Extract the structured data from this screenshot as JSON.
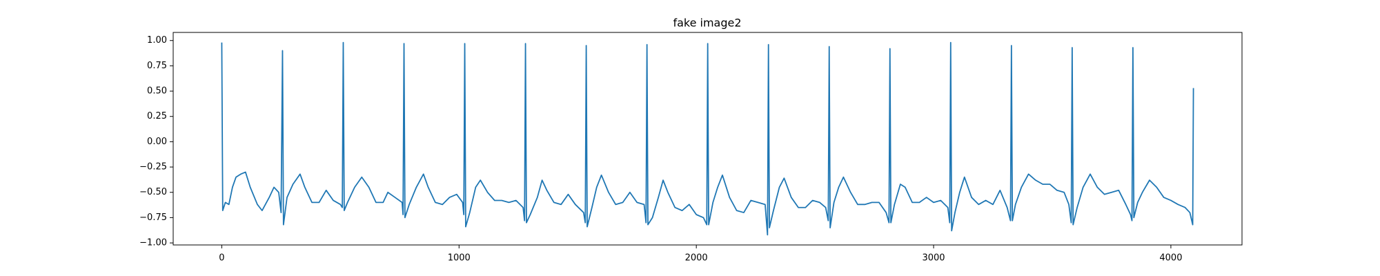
{
  "chart_data": {
    "type": "line",
    "title": "fake image2",
    "x": [
      0,
      4,
      15,
      30,
      45,
      60,
      80,
      100,
      120,
      150,
      170,
      200,
      220,
      240,
      250,
      256,
      260,
      275,
      300,
      330,
      350,
      380,
      410,
      440,
      470,
      500,
      508,
      512,
      516,
      530,
      560,
      590,
      620,
      650,
      680,
      700,
      730,
      760,
      764,
      768,
      772,
      790,
      820,
      850,
      870,
      900,
      930,
      960,
      990,
      1015,
      1020,
      1024,
      1028,
      1045,
      1070,
      1090,
      1120,
      1150,
      1180,
      1210,
      1240,
      1270,
      1276,
      1280,
      1284,
      1300,
      1330,
      1350,
      1370,
      1400,
      1430,
      1460,
      1490,
      1525,
      1532,
      1536,
      1540,
      1560,
      1580,
      1600,
      1630,
      1660,
      1690,
      1720,
      1750,
      1780,
      1788,
      1792,
      1796,
      1815,
      1840,
      1860,
      1880,
      1910,
      1940,
      1970,
      2000,
      2030,
      2044,
      2048,
      2052,
      2070,
      2090,
      2110,
      2140,
      2170,
      2200,
      2230,
      2260,
      2290,
      2300,
      2304,
      2308,
      2325,
      2350,
      2370,
      2400,
      2430,
      2460,
      2490,
      2520,
      2545,
      2556,
      2560,
      2564,
      2580,
      2600,
      2620,
      2650,
      2680,
      2710,
      2740,
      2770,
      2800,
      2812,
      2816,
      2820,
      2835,
      2860,
      2880,
      2910,
      2940,
      2970,
      3000,
      3030,
      3060,
      3068,
      3072,
      3076,
      3090,
      3110,
      3130,
      3160,
      3190,
      3220,
      3250,
      3280,
      3310,
      3324,
      3328,
      3332,
      3345,
      3370,
      3400,
      3430,
      3460,
      3490,
      3520,
      3550,
      3570,
      3580,
      3584,
      3588,
      3605,
      3630,
      3660,
      3690,
      3720,
      3750,
      3780,
      3810,
      3830,
      3836,
      3840,
      3844,
      3860,
      3880,
      3910,
      3940,
      3970,
      4000,
      4030,
      4060,
      4080,
      4092,
      4095
    ],
    "series": [
      {
        "color": "#1f77b4",
        "values": [
          0.98,
          -0.68,
          -0.6,
          -0.62,
          -0.45,
          -0.35,
          -0.32,
          -0.3,
          -0.45,
          -0.62,
          -0.68,
          -0.55,
          -0.45,
          -0.5,
          -0.7,
          0.9,
          -0.82,
          -0.55,
          -0.42,
          -0.32,
          -0.45,
          -0.6,
          -0.6,
          -0.48,
          -0.58,
          -0.62,
          -0.65,
          0.98,
          -0.68,
          -0.6,
          -0.45,
          -0.35,
          -0.45,
          -0.6,
          -0.6,
          -0.5,
          -0.55,
          -0.6,
          -0.72,
          0.97,
          -0.75,
          -0.62,
          -0.45,
          -0.32,
          -0.45,
          -0.6,
          -0.62,
          -0.55,
          -0.52,
          -0.6,
          -0.72,
          0.97,
          -0.84,
          -0.7,
          -0.45,
          -0.38,
          -0.5,
          -0.58,
          -0.58,
          -0.6,
          -0.58,
          -0.65,
          -0.78,
          0.97,
          -0.8,
          -0.72,
          -0.55,
          -0.38,
          -0.48,
          -0.6,
          -0.62,
          -0.52,
          -0.62,
          -0.7,
          -0.8,
          0.95,
          -0.84,
          -0.65,
          -0.45,
          -0.33,
          -0.5,
          -0.62,
          -0.6,
          -0.5,
          -0.6,
          -0.62,
          -0.8,
          0.96,
          -0.82,
          -0.75,
          -0.55,
          -0.38,
          -0.5,
          -0.65,
          -0.68,
          -0.62,
          -0.72,
          -0.75,
          -0.82,
          0.97,
          -0.82,
          -0.6,
          -0.45,
          -0.33,
          -0.55,
          -0.68,
          -0.7,
          -0.58,
          -0.6,
          -0.62,
          -0.92,
          0.96,
          -0.85,
          -0.68,
          -0.45,
          -0.36,
          -0.55,
          -0.65,
          -0.65,
          -0.58,
          -0.6,
          -0.65,
          -0.78,
          0.94,
          -0.85,
          -0.6,
          -0.45,
          -0.35,
          -0.5,
          -0.62,
          -0.62,
          -0.6,
          -0.6,
          -0.7,
          -0.8,
          0.92,
          -0.8,
          -0.62,
          -0.42,
          -0.45,
          -0.6,
          -0.6,
          -0.55,
          -0.6,
          -0.58,
          -0.65,
          -0.8,
          0.98,
          -0.88,
          -0.7,
          -0.5,
          -0.35,
          -0.55,
          -0.62,
          -0.58,
          -0.62,
          -0.48,
          -0.65,
          -0.78,
          0.95,
          -0.78,
          -0.62,
          -0.45,
          -0.32,
          -0.38,
          -0.42,
          -0.42,
          -0.48,
          -0.5,
          -0.62,
          -0.8,
          0.93,
          -0.82,
          -0.65,
          -0.45,
          -0.32,
          -0.45,
          -0.52,
          -0.5,
          -0.48,
          -0.62,
          -0.72,
          -0.78,
          0.93,
          -0.75,
          -0.6,
          -0.5,
          -0.38,
          -0.45,
          -0.55,
          -0.58,
          -0.62,
          -0.65,
          -0.7,
          -0.82,
          0.53
        ]
      }
    ],
    "xlim": [
      -204.75,
      4299.75
    ],
    "xticks": [
      0,
      1000,
      2000,
      3000,
      4000
    ],
    "ylim": [
      -1.02,
      1.08
    ],
    "yticks": [
      {
        "value": -1,
        "label": "−1.00"
      },
      {
        "value": -0.75,
        "label": "−0.75"
      },
      {
        "value": -0.5,
        "label": "−0.50"
      },
      {
        "value": -0.25,
        "label": "−0.25"
      },
      {
        "value": 0,
        "label": "0.00"
      },
      {
        "value": 0.25,
        "label": "0.25"
      },
      {
        "value": 0.5,
        "label": "0.50"
      },
      {
        "value": 0.75,
        "label": "0.75"
      },
      {
        "value": 1,
        "label": "1.00"
      }
    ]
  }
}
